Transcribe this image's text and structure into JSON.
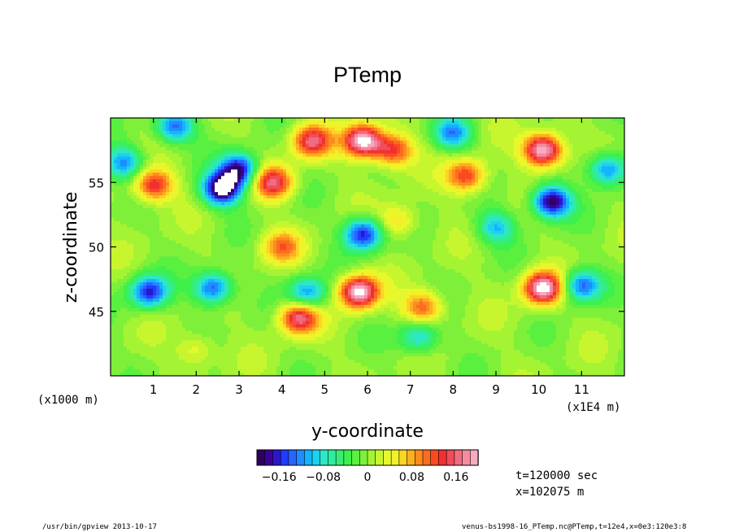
{
  "chart_data": {
    "type": "heatmap",
    "title": "PTemp",
    "xlabel": "y-coordinate",
    "ylabel": "z-coordinate",
    "x_unit_left": "(x1000 m)",
    "x_unit_right": "(x1E4 m)",
    "xlim": [
      0,
      12
    ],
    "ylim": [
      40,
      60
    ],
    "x_ticks": [
      {
        "value": 1,
        "label": "1"
      },
      {
        "value": 2,
        "label": "2"
      },
      {
        "value": 3,
        "label": "3"
      },
      {
        "value": 4,
        "label": "4"
      },
      {
        "value": 5,
        "label": "5"
      },
      {
        "value": 6,
        "label": "6"
      },
      {
        "value": 7,
        "label": "7"
      },
      {
        "value": 8,
        "label": "8"
      },
      {
        "value": 9,
        "label": "9"
      },
      {
        "value": 10,
        "label": "10"
      },
      {
        "value": 11,
        "label": "11"
      }
    ],
    "y_ticks": [
      {
        "value": 45,
        "label": "45"
      },
      {
        "value": 50,
        "label": "50"
      },
      {
        "value": 55,
        "label": "55"
      }
    ],
    "colorbar": {
      "range": [
        -0.2,
        0.2
      ],
      "tick_labels": [
        {
          "value": -0.16,
          "label": "−0.16"
        },
        {
          "value": -0.08,
          "label": "−0.08"
        },
        {
          "value": 0,
          "label": "0"
        },
        {
          "value": 0.08,
          "label": "0.08"
        },
        {
          "value": 0.16,
          "label": "0.16"
        }
      ],
      "colors": [
        "#2d0060",
        "#3b0096",
        "#2a18c8",
        "#1f3cff",
        "#2a64ff",
        "#1f8cff",
        "#14b4ff",
        "#1ed2ec",
        "#2ee6c8",
        "#30eca0",
        "#36ee74",
        "#3cf04e",
        "#5af040",
        "#7ef03a",
        "#a4f434",
        "#c8f62e",
        "#e6f82c",
        "#f4f028",
        "#fcd424",
        "#fcb020",
        "#fc8c20",
        "#fc6c20",
        "#fa4a20",
        "#f03030",
        "#f04c5a",
        "#f06c80",
        "#f48ca0",
        "#f8aac0"
      ],
      "out_of_range_color": "#ffffff"
    },
    "features": [
      {
        "y": 2.6,
        "z": 54.5,
        "value": -0.22
      },
      {
        "y": 3.0,
        "z": 56.0,
        "value": -0.18
      },
      {
        "y": 5.9,
        "z": 51.0,
        "value": -0.17
      },
      {
        "y": 5.9,
        "z": 58.2,
        "value": 0.22
      },
      {
        "y": 4.7,
        "z": 58.2,
        "value": 0.16
      },
      {
        "y": 6.6,
        "z": 57.5,
        "value": 0.14
      },
      {
        "y": 8.3,
        "z": 55.5,
        "value": 0.14
      },
      {
        "y": 10.1,
        "z": 57.5,
        "value": 0.22
      },
      {
        "y": 10.3,
        "z": 53.5,
        "value": -0.2
      },
      {
        "y": 5.8,
        "z": 46.5,
        "value": 0.22
      },
      {
        "y": 4.4,
        "z": 44.5,
        "value": 0.17
      },
      {
        "y": 10.1,
        "z": 46.8,
        "value": 0.22
      },
      {
        "y": 1.0,
        "z": 54.8,
        "value": 0.15
      },
      {
        "y": 3.8,
        "z": 55.0,
        "value": 0.16
      },
      {
        "y": 4.0,
        "z": 50.0,
        "value": 0.1
      },
      {
        "y": 0.9,
        "z": 46.5,
        "value": -0.16
      },
      {
        "y": 2.4,
        "z": 46.8,
        "value": -0.15
      },
      {
        "y": 4.6,
        "z": 46.4,
        "value": -0.12
      },
      {
        "y": 7.3,
        "z": 45.3,
        "value": 0.12
      },
      {
        "y": 7.2,
        "z": 43.0,
        "value": -0.1
      },
      {
        "y": 11.0,
        "z": 47.0,
        "value": -0.14
      },
      {
        "y": 0.3,
        "z": 56.5,
        "value": -0.12
      },
      {
        "y": 11.6,
        "z": 56.0,
        "value": -0.13
      },
      {
        "y": 1.5,
        "z": 59.3,
        "value": -0.14
      },
      {
        "y": 8.0,
        "z": 58.8,
        "value": -0.12
      },
      {
        "y": 9.0,
        "z": 51.5,
        "value": -0.1
      },
      {
        "y": 6.7,
        "z": 52.0,
        "value": 0.07
      },
      {
        "y": 2.0,
        "z": 42.0,
        "value": 0.05
      }
    ]
  },
  "annotations": {
    "time": "t=120000 sec",
    "position": "x=102075 m"
  },
  "footer": {
    "program": "/usr/bin/gpview  2013-10-17",
    "source": "venus-bs1998-16_PTemp.nc@PTemp,t=12e4,x=0e3:120e3:8"
  }
}
